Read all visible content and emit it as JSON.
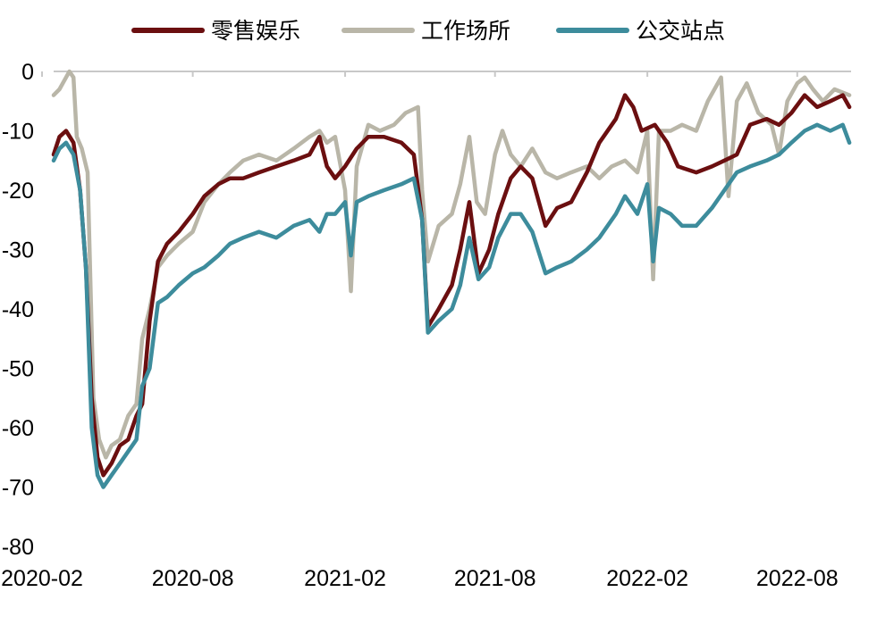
{
  "chart_data": {
    "type": "line",
    "title": "",
    "xlabel": "",
    "ylabel": "",
    "xlim": [
      "2020-02-15",
      "2022-10-05"
    ],
    "ylim": [
      -80,
      0
    ],
    "x_ticks": [
      "2020-02",
      "2020-08",
      "2021-02",
      "2021-08",
      "2022-02",
      "2022-08"
    ],
    "y_ticks": [
      0,
      -10,
      -20,
      -30,
      -40,
      -50,
      -60,
      -70,
      -80
    ],
    "grid": false,
    "legend": "top",
    "series": [
      {
        "name": "零售娱乐",
        "color": "#6b0f10",
        "points": [
          [
            "2020-02-15",
            -14
          ],
          [
            "2020-02-22",
            -11
          ],
          [
            "2020-03-01",
            -10
          ],
          [
            "2020-03-10",
            -12
          ],
          [
            "2020-03-18",
            -20
          ],
          [
            "2020-03-25",
            -33
          ],
          [
            "2020-04-01",
            -55
          ],
          [
            "2020-04-08",
            -65
          ],
          [
            "2020-04-15",
            -68
          ],
          [
            "2020-04-25",
            -66
          ],
          [
            "2020-05-05",
            -63
          ],
          [
            "2020-05-15",
            -62
          ],
          [
            "2020-05-25",
            -58
          ],
          [
            "2020-06-01",
            -56
          ],
          [
            "2020-06-10",
            -42
          ],
          [
            "2020-06-20",
            -32
          ],
          [
            "2020-07-01",
            -29
          ],
          [
            "2020-07-15",
            -27
          ],
          [
            "2020-08-01",
            -24
          ],
          [
            "2020-08-15",
            -21
          ],
          [
            "2020-09-01",
            -19
          ],
          [
            "2020-09-15",
            -18
          ],
          [
            "2020-10-01",
            -18
          ],
          [
            "2020-10-20",
            -17
          ],
          [
            "2020-11-10",
            -16
          ],
          [
            "2020-12-01",
            -15
          ],
          [
            "2020-12-20",
            -14
          ],
          [
            "2021-01-01",
            -11
          ],
          [
            "2021-01-10",
            -16
          ],
          [
            "2021-01-20",
            -18
          ],
          [
            "2021-02-01",
            -16
          ],
          [
            "2021-02-15",
            -13
          ],
          [
            "2021-03-01",
            -11
          ],
          [
            "2021-03-20",
            -11
          ],
          [
            "2021-04-10",
            -12
          ],
          [
            "2021-04-25",
            -14
          ],
          [
            "2021-05-05",
            -25
          ],
          [
            "2021-05-12",
            -43
          ],
          [
            "2021-05-25",
            -40
          ],
          [
            "2021-06-10",
            -36
          ],
          [
            "2021-06-20",
            -30
          ],
          [
            "2021-07-01",
            -22
          ],
          [
            "2021-07-12",
            -34
          ],
          [
            "2021-07-25",
            -30
          ],
          [
            "2021-08-05",
            -24
          ],
          [
            "2021-08-20",
            -18
          ],
          [
            "2021-09-01",
            -16
          ],
          [
            "2021-09-15",
            -18
          ],
          [
            "2021-10-01",
            -26
          ],
          [
            "2021-10-15",
            -23
          ],
          [
            "2021-11-01",
            -22
          ],
          [
            "2021-11-20",
            -17
          ],
          [
            "2021-12-05",
            -12
          ],
          [
            "2021-12-25",
            -8
          ],
          [
            "2022-01-05",
            -4
          ],
          [
            "2022-01-15",
            -6
          ],
          [
            "2022-01-25",
            -10
          ],
          [
            "2022-02-10",
            -9
          ],
          [
            "2022-02-25",
            -12
          ],
          [
            "2022-03-10",
            -16
          ],
          [
            "2022-04-01",
            -17
          ],
          [
            "2022-04-20",
            -16
          ],
          [
            "2022-05-05",
            -15
          ],
          [
            "2022-05-20",
            -14
          ],
          [
            "2022-06-05",
            -9
          ],
          [
            "2022-06-25",
            -8
          ],
          [
            "2022-07-10",
            -9
          ],
          [
            "2022-07-25",
            -7
          ],
          [
            "2022-08-10",
            -4
          ],
          [
            "2022-08-25",
            -6
          ],
          [
            "2022-09-10",
            -5
          ],
          [
            "2022-09-25",
            -4
          ],
          [
            "2022-10-03",
            -6
          ]
        ]
      },
      {
        "name": "工作场所",
        "color": "#b9b6a8",
        "points": [
          [
            "2020-02-15",
            -4
          ],
          [
            "2020-02-22",
            -3
          ],
          [
            "2020-03-01",
            -1
          ],
          [
            "2020-03-05",
            0
          ],
          [
            "2020-03-10",
            -1
          ],
          [
            "2020-03-14",
            -11
          ],
          [
            "2020-03-20",
            -13
          ],
          [
            "2020-03-27",
            -17
          ],
          [
            "2020-04-03",
            -55
          ],
          [
            "2020-04-10",
            -62
          ],
          [
            "2020-04-18",
            -65
          ],
          [
            "2020-04-25",
            -63
          ],
          [
            "2020-05-05",
            -62
          ],
          [
            "2020-05-15",
            -58
          ],
          [
            "2020-05-25",
            -56
          ],
          [
            "2020-06-01",
            -45
          ],
          [
            "2020-06-10",
            -40
          ],
          [
            "2020-06-20",
            -33
          ],
          [
            "2020-07-01",
            -31
          ],
          [
            "2020-07-15",
            -29
          ],
          [
            "2020-08-01",
            -27
          ],
          [
            "2020-08-15",
            -22
          ],
          [
            "2020-09-01",
            -19
          ],
          [
            "2020-09-15",
            -17
          ],
          [
            "2020-10-01",
            -15
          ],
          [
            "2020-10-20",
            -14
          ],
          [
            "2020-11-10",
            -15
          ],
          [
            "2020-12-01",
            -13
          ],
          [
            "2020-12-20",
            -11
          ],
          [
            "2021-01-01",
            -10
          ],
          [
            "2021-01-10",
            -12
          ],
          [
            "2021-01-20",
            -11
          ],
          [
            "2021-02-01",
            -20
          ],
          [
            "2021-02-08",
            -37
          ],
          [
            "2021-02-15",
            -16
          ],
          [
            "2021-03-01",
            -9
          ],
          [
            "2021-03-15",
            -10
          ],
          [
            "2021-04-01",
            -9
          ],
          [
            "2021-04-15",
            -7
          ],
          [
            "2021-04-30",
            -6
          ],
          [
            "2021-05-05",
            -20
          ],
          [
            "2021-05-12",
            -32
          ],
          [
            "2021-05-25",
            -26
          ],
          [
            "2021-06-10",
            -24
          ],
          [
            "2021-06-20",
            -19
          ],
          [
            "2021-07-01",
            -11
          ],
          [
            "2021-07-10",
            -22
          ],
          [
            "2021-07-20",
            -24
          ],
          [
            "2021-08-01",
            -14
          ],
          [
            "2021-08-10",
            -10
          ],
          [
            "2021-08-20",
            -14
          ],
          [
            "2021-09-01",
            -16
          ],
          [
            "2021-09-15",
            -13
          ],
          [
            "2021-10-01",
            -17
          ],
          [
            "2021-10-15",
            -18
          ],
          [
            "2021-11-01",
            -17
          ],
          [
            "2021-11-20",
            -16
          ],
          [
            "2021-12-05",
            -18
          ],
          [
            "2021-12-20",
            -16
          ],
          [
            "2022-01-05",
            -15
          ],
          [
            "2022-01-20",
            -17
          ],
          [
            "2022-02-01",
            -10
          ],
          [
            "2022-02-08",
            -35
          ],
          [
            "2022-02-15",
            -10
          ],
          [
            "2022-03-01",
            -10
          ],
          [
            "2022-03-15",
            -9
          ],
          [
            "2022-04-01",
            -10
          ],
          [
            "2022-04-15",
            -5
          ],
          [
            "2022-05-01",
            -1
          ],
          [
            "2022-05-10",
            -21
          ],
          [
            "2022-05-20",
            -5
          ],
          [
            "2022-06-01",
            -2
          ],
          [
            "2022-06-15",
            -7
          ],
          [
            "2022-07-01",
            -9
          ],
          [
            "2022-07-10",
            -14
          ],
          [
            "2022-07-20",
            -5
          ],
          [
            "2022-08-01",
            -2
          ],
          [
            "2022-08-10",
            -1
          ],
          [
            "2022-08-20",
            -3
          ],
          [
            "2022-09-01",
            -5
          ],
          [
            "2022-09-15",
            -3
          ],
          [
            "2022-10-03",
            -4
          ]
        ]
      },
      {
        "name": "公交站点",
        "color": "#3d8c9c",
        "points": [
          [
            "2020-02-15",
            -15
          ],
          [
            "2020-02-22",
            -13
          ],
          [
            "2020-03-01",
            -12
          ],
          [
            "2020-03-10",
            -14
          ],
          [
            "2020-03-18",
            -20
          ],
          [
            "2020-03-25",
            -33
          ],
          [
            "2020-04-01",
            -60
          ],
          [
            "2020-04-08",
            -68
          ],
          [
            "2020-04-15",
            -70
          ],
          [
            "2020-04-25",
            -68
          ],
          [
            "2020-05-05",
            -66
          ],
          [
            "2020-05-15",
            -64
          ],
          [
            "2020-05-25",
            -62
          ],
          [
            "2020-06-01",
            -53
          ],
          [
            "2020-06-10",
            -50
          ],
          [
            "2020-06-20",
            -39
          ],
          [
            "2020-07-01",
            -38
          ],
          [
            "2020-07-15",
            -36
          ],
          [
            "2020-08-01",
            -34
          ],
          [
            "2020-08-15",
            -33
          ],
          [
            "2020-09-01",
            -31
          ],
          [
            "2020-09-15",
            -29
          ],
          [
            "2020-10-01",
            -28
          ],
          [
            "2020-10-20",
            -27
          ],
          [
            "2020-11-10",
            -28
          ],
          [
            "2020-12-01",
            -26
          ],
          [
            "2020-12-20",
            -25
          ],
          [
            "2021-01-01",
            -27
          ],
          [
            "2021-01-10",
            -24
          ],
          [
            "2021-01-20",
            -24
          ],
          [
            "2021-02-01",
            -22
          ],
          [
            "2021-02-08",
            -31
          ],
          [
            "2021-02-15",
            -22
          ],
          [
            "2021-03-01",
            -21
          ],
          [
            "2021-03-20",
            -20
          ],
          [
            "2021-04-10",
            -19
          ],
          [
            "2021-04-25",
            -18
          ],
          [
            "2021-05-05",
            -25
          ],
          [
            "2021-05-12",
            -44
          ],
          [
            "2021-05-25",
            -42
          ],
          [
            "2021-06-10",
            -40
          ],
          [
            "2021-06-20",
            -36
          ],
          [
            "2021-07-01",
            -28
          ],
          [
            "2021-07-12",
            -35
          ],
          [
            "2021-07-25",
            -33
          ],
          [
            "2021-08-05",
            -28
          ],
          [
            "2021-08-20",
            -24
          ],
          [
            "2021-09-01",
            -24
          ],
          [
            "2021-09-15",
            -27
          ],
          [
            "2021-10-01",
            -34
          ],
          [
            "2021-10-15",
            -33
          ],
          [
            "2021-11-01",
            -32
          ],
          [
            "2021-11-20",
            -30
          ],
          [
            "2021-12-05",
            -28
          ],
          [
            "2021-12-25",
            -24
          ],
          [
            "2022-01-05",
            -21
          ],
          [
            "2022-01-20",
            -24
          ],
          [
            "2022-02-01",
            -19
          ],
          [
            "2022-02-08",
            -32
          ],
          [
            "2022-02-15",
            -23
          ],
          [
            "2022-03-01",
            -24
          ],
          [
            "2022-03-15",
            -26
          ],
          [
            "2022-04-01",
            -26
          ],
          [
            "2022-04-20",
            -23
          ],
          [
            "2022-05-05",
            -20
          ],
          [
            "2022-05-20",
            -17
          ],
          [
            "2022-06-05",
            -16
          ],
          [
            "2022-06-25",
            -15
          ],
          [
            "2022-07-10",
            -14
          ],
          [
            "2022-07-25",
            -12
          ],
          [
            "2022-08-10",
            -10
          ],
          [
            "2022-08-25",
            -9
          ],
          [
            "2022-09-10",
            -10
          ],
          [
            "2022-09-25",
            -9
          ],
          [
            "2022-10-03",
            -12
          ]
        ]
      }
    ]
  }
}
